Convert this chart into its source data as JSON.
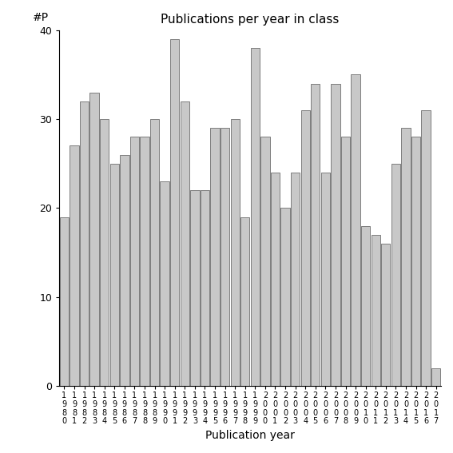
{
  "title": "Publications per year in class",
  "xlabel": "Publication year",
  "ylabel": "#P",
  "bar_color": "#c8c8c8",
  "edge_color": "#555555",
  "background_color": "#ffffff",
  "ylim": [
    0,
    40
  ],
  "yticks": [
    0,
    10,
    20,
    30,
    40
  ],
  "years": [
    1980,
    1981,
    1982,
    1983,
    1984,
    1985,
    1986,
    1987,
    1988,
    1989,
    1990,
    1991,
    1992,
    1993,
    1994,
    1995,
    1996,
    1997,
    1998,
    1999,
    2000,
    2001,
    2002,
    2003,
    2004,
    2005,
    2006,
    2007,
    2008,
    2009,
    2010,
    2011,
    2012,
    2013,
    2014,
    2015,
    2016,
    2017
  ],
  "values": [
    19,
    27,
    32,
    33,
    30,
    25,
    26,
    28,
    28,
    30,
    23,
    39,
    32,
    22,
    22,
    29,
    29,
    30,
    19,
    38,
    28,
    24,
    20,
    24,
    31,
    34,
    24,
    34,
    28,
    35,
    18,
    17,
    16,
    25,
    29,
    28,
    31,
    2
  ]
}
